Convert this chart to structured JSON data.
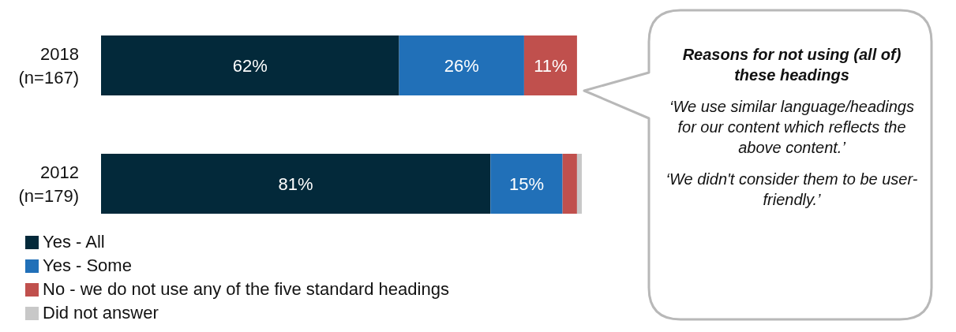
{
  "chart_data": {
    "type": "bar",
    "orientation": "horizontal",
    "stacked": true,
    "legend": "bottom",
    "categories": [
      "2018\n(n=167)",
      "2012\n(n=179)"
    ],
    "series": [
      {
        "name": "Yes - All",
        "color": "#03293a",
        "values": [
          62,
          81
        ],
        "value_labels": [
          "62%",
          "81%"
        ]
      },
      {
        "name": "Yes - Some",
        "color": "#2170b8",
        "values": [
          26,
          15
        ],
        "value_labels": [
          "26%",
          "15%"
        ]
      },
      {
        "name": "No - we do not use any of the five standard headings",
        "color": "#c0504d",
        "values": [
          11,
          3
        ],
        "value_labels": [
          "11%",
          null
        ]
      },
      {
        "name": "Did not answer",
        "color": "#c8c8c8",
        "values": [
          null,
          1
        ],
        "value_labels": [
          null,
          null
        ]
      }
    ],
    "annotations": [
      "Reasons for not using (all of) these headings",
      "‘We use similar language/headings for our content which reflects the above content.’",
      "‘We didn't consider them to be user-friendly.’"
    ]
  }
}
